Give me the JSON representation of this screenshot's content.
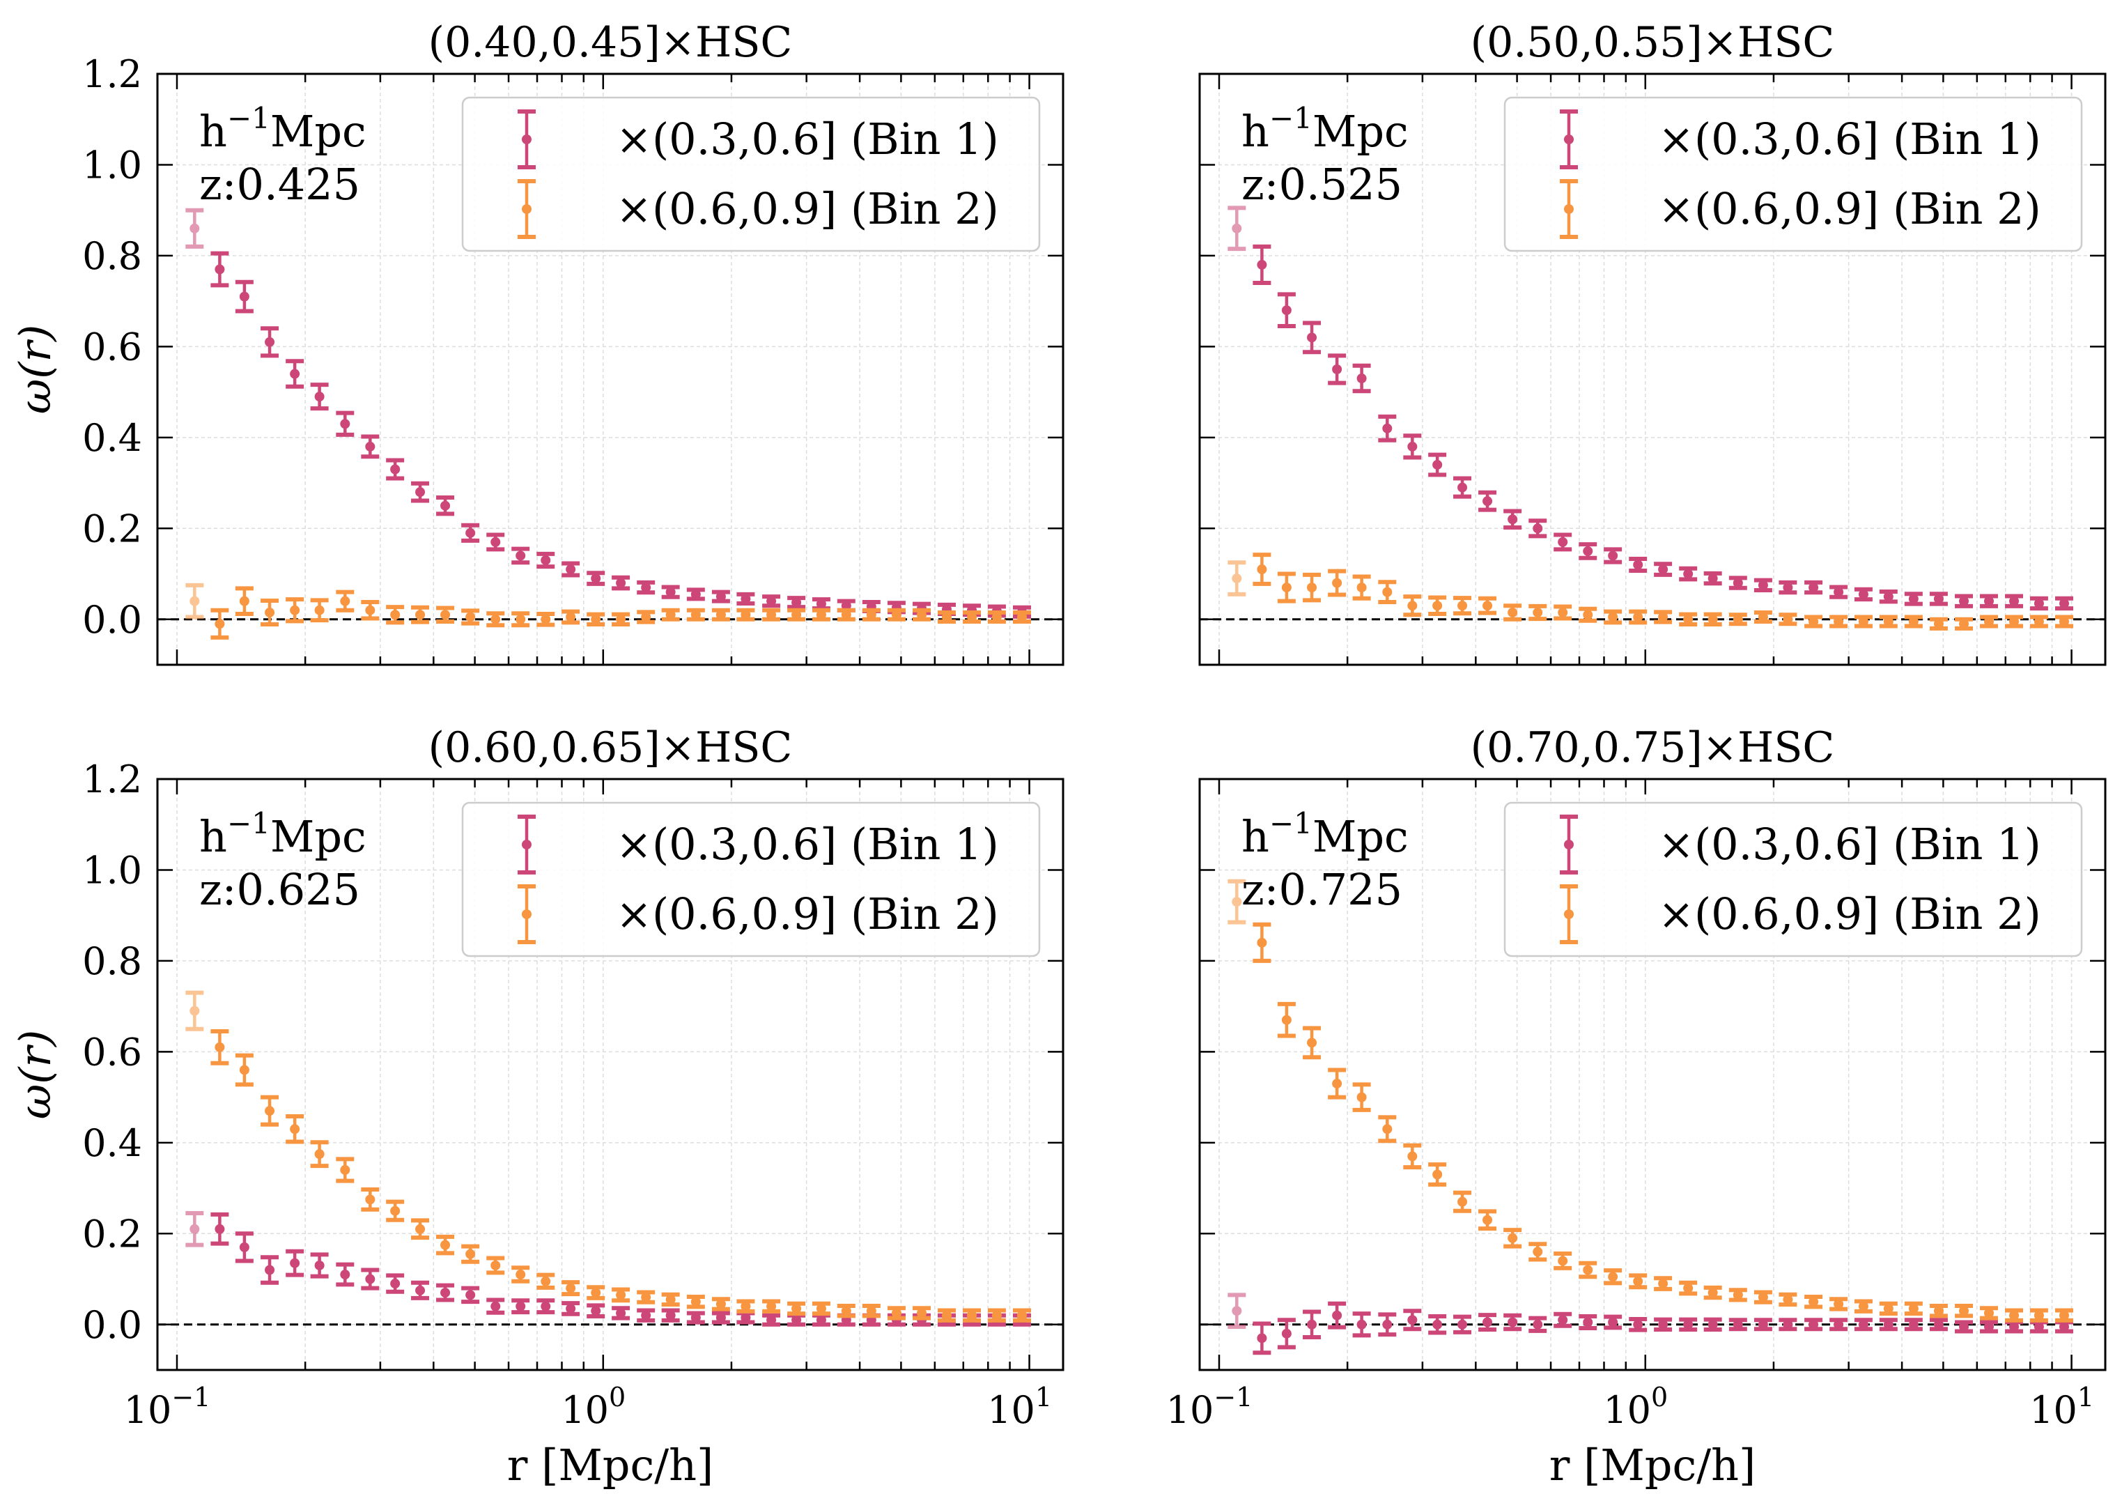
{
  "colors": {
    "bin1": "#cc4778",
    "bin2": "#f89540",
    "grid": "#dddddd",
    "axis": "#000000",
    "zero_line": "#000000"
  },
  "chart_data": [
    {
      "type": "scatter",
      "title": "(0.40,0.45]×HSC",
      "annotation": {
        "unit_prefix": "h",
        "unit_exp": "−1",
        "unit_suffix": "Mpc",
        "z_label": "z:0.425"
      },
      "xlabel": "r [Mpc/h]",
      "ylabel": "ω(r)",
      "xscale": "log",
      "xlim": [
        0.09,
        12
      ],
      "ylim": [
        -0.1,
        1.2
      ],
      "xticks": [
        {
          "base": "10",
          "exp": "−1",
          "value": 0.1
        },
        {
          "base": "10",
          "exp": "0",
          "value": 1
        },
        {
          "base": "10",
          "exp": "1",
          "value": 10
        }
      ],
      "yticks": [
        "0.0",
        "0.2",
        "0.4",
        "0.6",
        "0.8",
        "1.0",
        "1.2"
      ],
      "legend": {
        "placement": "top-right"
      },
      "x": [
        0.11,
        0.126,
        0.144,
        0.165,
        0.189,
        0.216,
        0.248,
        0.284,
        0.325,
        0.372,
        0.426,
        0.488,
        0.559,
        0.64,
        0.733,
        0.839,
        0.961,
        1.1,
        1.26,
        1.44,
        1.65,
        1.89,
        2.16,
        2.48,
        2.84,
        3.25,
        3.72,
        4.26,
        4.88,
        5.59,
        6.4,
        7.33,
        8.39,
        9.61
      ],
      "series": [
        {
          "name": "×(0.3,0.6] (Bin 1)",
          "values": [
            0.86,
            0.77,
            0.71,
            0.61,
            0.54,
            0.49,
            0.43,
            0.38,
            0.33,
            0.28,
            0.25,
            0.19,
            0.17,
            0.14,
            0.13,
            0.11,
            0.09,
            0.08,
            0.07,
            0.06,
            0.055,
            0.05,
            0.045,
            0.04,
            0.037,
            0.034,
            0.03,
            0.028,
            0.026,
            0.024,
            0.022,
            0.02,
            0.018,
            0.016
          ],
          "err": [
            0.04,
            0.035,
            0.032,
            0.03,
            0.028,
            0.026,
            0.024,
            0.022,
            0.02,
            0.019,
            0.018,
            0.017,
            0.016,
            0.015,
            0.014,
            0.013,
            0.012,
            0.012,
            0.011,
            0.011,
            0.01,
            0.01,
            0.01,
            0.01,
            0.01,
            0.01,
            0.01,
            0.01,
            0.01,
            0.01,
            0.01,
            0.01,
            0.01,
            0.01
          ]
        },
        {
          "name": "×(0.6,0.9] (Bin 2)",
          "values": [
            0.04,
            -0.01,
            0.04,
            0.015,
            0.02,
            0.02,
            0.04,
            0.02,
            0.01,
            0.01,
            0.01,
            0.005,
            0.0,
            0.0,
            0.0,
            0.005,
            0.0,
            0.0,
            0.005,
            0.01,
            0.01,
            0.01,
            0.01,
            0.01,
            0.01,
            0.01,
            0.01,
            0.01,
            0.01,
            0.01,
            0.005,
            0.005,
            0.005,
            0.005
          ],
          "err": [
            0.035,
            0.03,
            0.028,
            0.026,
            0.024,
            0.022,
            0.02,
            0.018,
            0.017,
            0.016,
            0.015,
            0.014,
            0.013,
            0.013,
            0.012,
            0.012,
            0.011,
            0.011,
            0.011,
            0.01,
            0.01,
            0.01,
            0.01,
            0.01,
            0.01,
            0.01,
            0.01,
            0.01,
            0.01,
            0.01,
            0.01,
            0.01,
            0.01,
            0.01
          ]
        }
      ]
    },
    {
      "type": "scatter",
      "title": "(0.50,0.55]×HSC",
      "annotation": {
        "unit_prefix": "h",
        "unit_exp": "−1",
        "unit_suffix": "Mpc",
        "z_label": "z:0.525"
      },
      "xlabel": "r [Mpc/h]",
      "ylabel": "ω(r)",
      "xscale": "log",
      "xlim": [
        0.09,
        12
      ],
      "ylim": [
        -0.1,
        1.2
      ],
      "xticks": [
        {
          "base": "10",
          "exp": "−1",
          "value": 0.1
        },
        {
          "base": "10",
          "exp": "0",
          "value": 1
        },
        {
          "base": "10",
          "exp": "1",
          "value": 10
        }
      ],
      "yticks": [
        "0.0",
        "0.2",
        "0.4",
        "0.6",
        "0.8",
        "1.0",
        "1.2"
      ],
      "legend": {
        "placement": "top-right"
      },
      "x": [
        0.11,
        0.126,
        0.144,
        0.165,
        0.189,
        0.216,
        0.248,
        0.284,
        0.325,
        0.372,
        0.426,
        0.488,
        0.559,
        0.64,
        0.733,
        0.839,
        0.961,
        1.1,
        1.26,
        1.44,
        1.65,
        1.89,
        2.16,
        2.48,
        2.84,
        3.25,
        3.72,
        4.26,
        4.88,
        5.59,
        6.4,
        7.33,
        8.39,
        9.61
      ],
      "series": [
        {
          "name": "×(0.3,0.6] (Bin 1)",
          "values": [
            0.86,
            0.78,
            0.68,
            0.62,
            0.55,
            0.53,
            0.42,
            0.38,
            0.34,
            0.29,
            0.26,
            0.22,
            0.2,
            0.17,
            0.15,
            0.14,
            0.12,
            0.11,
            0.1,
            0.09,
            0.08,
            0.075,
            0.07,
            0.07,
            0.06,
            0.055,
            0.05,
            0.045,
            0.045,
            0.04,
            0.04,
            0.04,
            0.035,
            0.035
          ],
          "err": [
            0.045,
            0.04,
            0.035,
            0.032,
            0.03,
            0.028,
            0.026,
            0.024,
            0.022,
            0.02,
            0.019,
            0.018,
            0.017,
            0.016,
            0.015,
            0.014,
            0.013,
            0.012,
            0.012,
            0.011,
            0.011,
            0.011,
            0.011,
            0.011,
            0.011,
            0.011,
            0.011,
            0.011,
            0.011,
            0.011,
            0.011,
            0.011,
            0.011,
            0.011
          ]
        },
        {
          "name": "×(0.6,0.9] (Bin 2)",
          "values": [
            0.09,
            0.11,
            0.07,
            0.07,
            0.08,
            0.07,
            0.06,
            0.03,
            0.03,
            0.03,
            0.03,
            0.015,
            0.015,
            0.015,
            0.01,
            0.005,
            0.005,
            0.005,
            0.0,
            0.0,
            0.0,
            0.005,
            0.0,
            -0.005,
            -0.005,
            -0.005,
            -0.005,
            -0.005,
            -0.01,
            -0.01,
            -0.005,
            -0.005,
            -0.005,
            -0.005
          ],
          "err": [
            0.035,
            0.032,
            0.03,
            0.028,
            0.026,
            0.024,
            0.022,
            0.02,
            0.018,
            0.017,
            0.016,
            0.015,
            0.014,
            0.013,
            0.013,
            0.012,
            0.012,
            0.011,
            0.011,
            0.011,
            0.01,
            0.01,
            0.01,
            0.01,
            0.01,
            0.01,
            0.01,
            0.01,
            0.01,
            0.01,
            0.01,
            0.01,
            0.01,
            0.01
          ]
        }
      ]
    },
    {
      "type": "scatter",
      "title": "(0.60,0.65]×HSC",
      "annotation": {
        "unit_prefix": "h",
        "unit_exp": "−1",
        "unit_suffix": "Mpc",
        "z_label": "z:0.625"
      },
      "xlabel": "r [Mpc/h]",
      "ylabel": "ω(r)",
      "xscale": "log",
      "xlim": [
        0.09,
        12
      ],
      "ylim": [
        -0.1,
        1.2
      ],
      "xticks": [
        {
          "base": "10",
          "exp": "−1",
          "value": 0.1
        },
        {
          "base": "10",
          "exp": "0",
          "value": 1
        },
        {
          "base": "10",
          "exp": "1",
          "value": 10
        }
      ],
      "yticks": [
        "0.0",
        "0.2",
        "0.4",
        "0.6",
        "0.8",
        "1.0",
        "1.2"
      ],
      "legend": {
        "placement": "top-right"
      },
      "x": [
        0.11,
        0.126,
        0.144,
        0.165,
        0.189,
        0.216,
        0.248,
        0.284,
        0.325,
        0.372,
        0.426,
        0.488,
        0.559,
        0.64,
        0.733,
        0.839,
        0.961,
        1.1,
        1.26,
        1.44,
        1.65,
        1.89,
        2.16,
        2.48,
        2.84,
        3.25,
        3.72,
        4.26,
        4.88,
        5.59,
        6.4,
        7.33,
        8.39,
        9.61
      ],
      "series": [
        {
          "name": "×(0.3,0.6] (Bin 1)",
          "values": [
            0.21,
            0.21,
            0.17,
            0.12,
            0.135,
            0.13,
            0.11,
            0.1,
            0.09,
            0.075,
            0.07,
            0.065,
            0.04,
            0.04,
            0.04,
            0.035,
            0.03,
            0.025,
            0.02,
            0.02,
            0.015,
            0.015,
            0.015,
            0.01,
            0.01,
            0.01,
            0.01,
            0.01,
            0.01,
            0.01,
            0.01,
            0.01,
            0.01,
            0.01
          ],
          "err": [
            0.035,
            0.032,
            0.03,
            0.028,
            0.026,
            0.024,
            0.022,
            0.02,
            0.018,
            0.017,
            0.016,
            0.015,
            0.014,
            0.013,
            0.013,
            0.012,
            0.012,
            0.011,
            0.011,
            0.011,
            0.01,
            0.01,
            0.01,
            0.01,
            0.01,
            0.01,
            0.01,
            0.01,
            0.01,
            0.01,
            0.01,
            0.01,
            0.01,
            0.01
          ]
        },
        {
          "name": "×(0.6,0.9] (Bin 2)",
          "values": [
            0.69,
            0.61,
            0.56,
            0.47,
            0.43,
            0.375,
            0.34,
            0.275,
            0.25,
            0.21,
            0.175,
            0.155,
            0.13,
            0.11,
            0.095,
            0.08,
            0.07,
            0.065,
            0.06,
            0.055,
            0.05,
            0.045,
            0.04,
            0.04,
            0.035,
            0.035,
            0.03,
            0.03,
            0.025,
            0.025,
            0.02,
            0.02,
            0.02,
            0.02
          ],
          "err": [
            0.04,
            0.035,
            0.032,
            0.03,
            0.028,
            0.026,
            0.024,
            0.022,
            0.02,
            0.019,
            0.018,
            0.017,
            0.016,
            0.015,
            0.014,
            0.013,
            0.012,
            0.012,
            0.011,
            0.011,
            0.011,
            0.011,
            0.011,
            0.011,
            0.011,
            0.011,
            0.011,
            0.011,
            0.011,
            0.011,
            0.011,
            0.011,
            0.011,
            0.011
          ]
        }
      ]
    },
    {
      "type": "scatter",
      "title": "(0.70,0.75]×HSC",
      "annotation": {
        "unit_prefix": "h",
        "unit_exp": "−1",
        "unit_suffix": "Mpc",
        "z_label": "z:0.725"
      },
      "xlabel": "r [Mpc/h]",
      "ylabel": "ω(r)",
      "xscale": "log",
      "xlim": [
        0.09,
        12
      ],
      "ylim": [
        -0.1,
        1.2
      ],
      "xticks": [
        {
          "base": "10",
          "exp": "−1",
          "value": 0.1
        },
        {
          "base": "10",
          "exp": "0",
          "value": 1
        },
        {
          "base": "10",
          "exp": "1",
          "value": 10
        }
      ],
      "yticks": [
        "0.0",
        "0.2",
        "0.4",
        "0.6",
        "0.8",
        "1.0",
        "1.2"
      ],
      "legend": {
        "placement": "top-right"
      },
      "x": [
        0.11,
        0.126,
        0.144,
        0.165,
        0.189,
        0.216,
        0.248,
        0.284,
        0.325,
        0.372,
        0.426,
        0.488,
        0.559,
        0.64,
        0.733,
        0.839,
        0.961,
        1.1,
        1.26,
        1.44,
        1.65,
        1.89,
        2.16,
        2.48,
        2.84,
        3.25,
        3.72,
        4.26,
        4.88,
        5.59,
        6.4,
        7.33,
        8.39,
        9.61
      ],
      "series": [
        {
          "name": "×(0.3,0.6] (Bin 1)",
          "values": [
            0.03,
            -0.03,
            -0.02,
            0.0,
            0.02,
            0.0,
            0.0,
            0.01,
            0.0,
            0.0,
            0.005,
            0.005,
            0.0,
            0.01,
            0.005,
            0.005,
            0.0,
            0.0,
            0.0,
            0.0,
            0.0,
            0.0,
            0.0,
            0.0,
            0.0,
            0.0,
            0.0,
            0.0,
            0.0,
            -0.005,
            -0.005,
            -0.005,
            -0.005,
            -0.005
          ],
          "err": [
            0.035,
            0.032,
            0.03,
            0.028,
            0.026,
            0.024,
            0.022,
            0.02,
            0.018,
            0.017,
            0.016,
            0.015,
            0.014,
            0.013,
            0.013,
            0.012,
            0.012,
            0.011,
            0.011,
            0.011,
            0.01,
            0.01,
            0.01,
            0.01,
            0.01,
            0.01,
            0.01,
            0.01,
            0.01,
            0.01,
            0.01,
            0.01,
            0.01,
            0.01
          ]
        },
        {
          "name": "×(0.6,0.9] (Bin 2)",
          "values": [
            0.93,
            0.84,
            0.67,
            0.62,
            0.53,
            0.5,
            0.43,
            0.37,
            0.33,
            0.27,
            0.23,
            0.19,
            0.16,
            0.14,
            0.12,
            0.105,
            0.095,
            0.09,
            0.08,
            0.07,
            0.065,
            0.06,
            0.055,
            0.05,
            0.045,
            0.04,
            0.035,
            0.035,
            0.03,
            0.03,
            0.025,
            0.02,
            0.02,
            0.02
          ],
          "err": [
            0.045,
            0.04,
            0.035,
            0.032,
            0.03,
            0.028,
            0.026,
            0.024,
            0.022,
            0.02,
            0.019,
            0.018,
            0.017,
            0.016,
            0.015,
            0.014,
            0.013,
            0.012,
            0.012,
            0.011,
            0.011,
            0.011,
            0.011,
            0.011,
            0.011,
            0.011,
            0.011,
            0.011,
            0.011,
            0.011,
            0.011,
            0.011,
            0.011,
            0.011
          ]
        }
      ]
    }
  ]
}
